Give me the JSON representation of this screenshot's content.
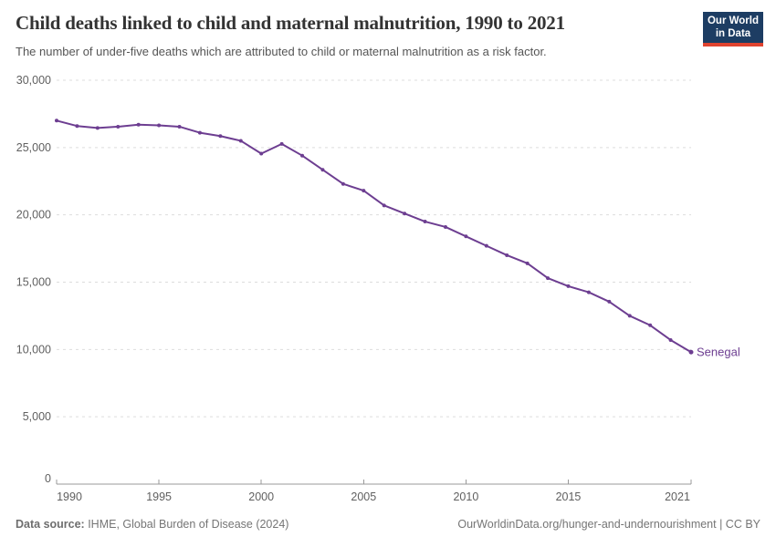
{
  "header": {
    "title": "Child deaths linked to child and maternal malnutrition, 1990 to 2021",
    "subtitle": "The number of under-five deaths which are attributed to child or maternal malnutrition as a risk factor.",
    "logo": {
      "line1": "Our World",
      "line2": "in Data"
    }
  },
  "chart_data": {
    "type": "line",
    "title": "Child deaths linked to child and maternal malnutrition, 1990 to 2021",
    "x": [
      1990,
      1991,
      1992,
      1993,
      1994,
      1995,
      1996,
      1997,
      1998,
      1999,
      2000,
      2001,
      2002,
      2003,
      2004,
      2005,
      2006,
      2007,
      2008,
      2009,
      2010,
      2011,
      2012,
      2013,
      2014,
      2015,
      2016,
      2017,
      2018,
      2019,
      2020,
      2021
    ],
    "series": [
      {
        "name": "Senegal",
        "color": "#6d3e91",
        "values": [
          27000,
          26600,
          26450,
          26550,
          26700,
          26650,
          26550,
          26100,
          25850,
          25500,
          24550,
          25270,
          24400,
          23350,
          22300,
          21800,
          20700,
          20100,
          19500,
          19100,
          18400,
          17700,
          17000,
          16400,
          15300,
          14700,
          14250,
          13550,
          12500,
          11800,
          10700,
          9800
        ]
      }
    ],
    "xlim": [
      1990,
      2021
    ],
    "ylim": [
      0,
      30000
    ],
    "grid": "horizontal-dashed",
    "legend_position": "end-of-line",
    "y_ticks": [
      {
        "value": 0,
        "label": "0"
      },
      {
        "value": 5000,
        "label": "5,000"
      },
      {
        "value": 10000,
        "label": "10,000"
      },
      {
        "value": 15000,
        "label": "15,000"
      },
      {
        "value": 20000,
        "label": "20,000"
      },
      {
        "value": 25000,
        "label": "25,000"
      },
      {
        "value": 30000,
        "label": "30,000"
      }
    ],
    "x_ticks": [
      {
        "value": 1990,
        "label": "1990"
      },
      {
        "value": 1995,
        "label": "1995"
      },
      {
        "value": 2000,
        "label": "2000"
      },
      {
        "value": 2005,
        "label": "2005"
      },
      {
        "value": 2010,
        "label": "2010"
      },
      {
        "value": 2015,
        "label": "2015"
      },
      {
        "value": 2021,
        "label": "2021"
      }
    ]
  },
  "footer": {
    "source_label": "Data source:",
    "source_value": " IHME, Global Burden of Disease (2024)",
    "link": "OurWorldinData.org/hunger-and-undernourishment | CC BY"
  },
  "colors": {
    "line": "#6d3e91",
    "grid": "#dddddd",
    "axis": "#999999",
    "tick_label": "#606060",
    "title": "#333333",
    "subtitle": "#555555",
    "footer": "#757575",
    "logo_bg": "#1d3d63",
    "logo_stripe": "#e0432f"
  }
}
